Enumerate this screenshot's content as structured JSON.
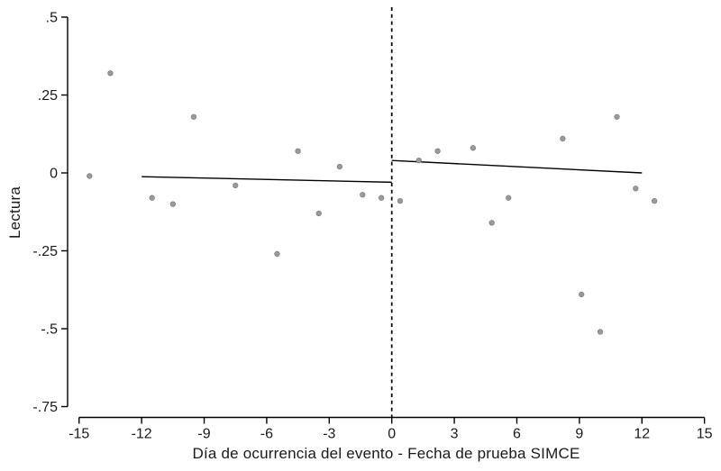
{
  "figure": {
    "background": "#ffffff"
  },
  "chart_data": {
    "type": "scatter",
    "title": "",
    "xlabel": "Día de ocurrencia del evento - Fecha de prueba SIMCE",
    "ylabel": "Lectura",
    "xlim": [
      -15,
      15
    ],
    "ylim": [
      -0.75,
      0.5
    ],
    "xticks": [
      -15,
      -12,
      -9,
      -6,
      -3,
      0,
      3,
      6,
      9,
      12,
      15
    ],
    "xtick_labels": [
      "-15",
      "-12",
      "-9",
      "-6",
      "-3",
      "0",
      "3",
      "6",
      "9",
      "12",
      "15"
    ],
    "yticks": [
      0.5,
      0.25,
      0,
      -0.25,
      -0.5,
      -0.75
    ],
    "ytick_labels": [
      ".5",
      ".25",
      "0",
      "-.25",
      "-.5",
      "-.75"
    ],
    "grid": false,
    "legend": "none",
    "points": [
      {
        "x": -14.5,
        "y": -0.01
      },
      {
        "x": -13.5,
        "y": 0.32
      },
      {
        "x": -11.5,
        "y": -0.08
      },
      {
        "x": -10.5,
        "y": -0.1
      },
      {
        "x": -9.5,
        "y": 0.18
      },
      {
        "x": -7.5,
        "y": -0.04
      },
      {
        "x": -5.5,
        "y": -0.26
      },
      {
        "x": -4.5,
        "y": 0.07
      },
      {
        "x": -3.5,
        "y": -0.13
      },
      {
        "x": -2.5,
        "y": 0.02
      },
      {
        "x": -1.4,
        "y": -0.07
      },
      {
        "x": -0.5,
        "y": -0.08
      },
      {
        "x": 0.4,
        "y": -0.09
      },
      {
        "x": 1.3,
        "y": 0.04
      },
      {
        "x": 2.2,
        "y": 0.07
      },
      {
        "x": 3.9,
        "y": 0.08
      },
      {
        "x": 4.8,
        "y": -0.16
      },
      {
        "x": 5.6,
        "y": -0.08
      },
      {
        "x": 8.2,
        "y": 0.11
      },
      {
        "x": 9.1,
        "y": -0.39
      },
      {
        "x": 10.0,
        "y": -0.51
      },
      {
        "x": 10.8,
        "y": 0.18
      },
      {
        "x": 11.7,
        "y": -0.05
      },
      {
        "x": 12.6,
        "y": -0.09
      }
    ],
    "fit_lines": [
      {
        "side": "left",
        "x1": -12,
        "y1": -0.012,
        "x2": 0,
        "y2": -0.03
      },
      {
        "side": "right",
        "x1": 0,
        "y1": 0.04,
        "x2": 12,
        "y2": 0.0
      }
    ],
    "cutoff_line": {
      "x": 0,
      "style": "dashed"
    },
    "colors": {
      "point_fill": "#9a9a9a",
      "point_stroke": "#7d7d7d",
      "fit_line": "#000000",
      "cutoff_line": "#000000",
      "axis": "#000000",
      "text": "#1a1a1a"
    }
  }
}
